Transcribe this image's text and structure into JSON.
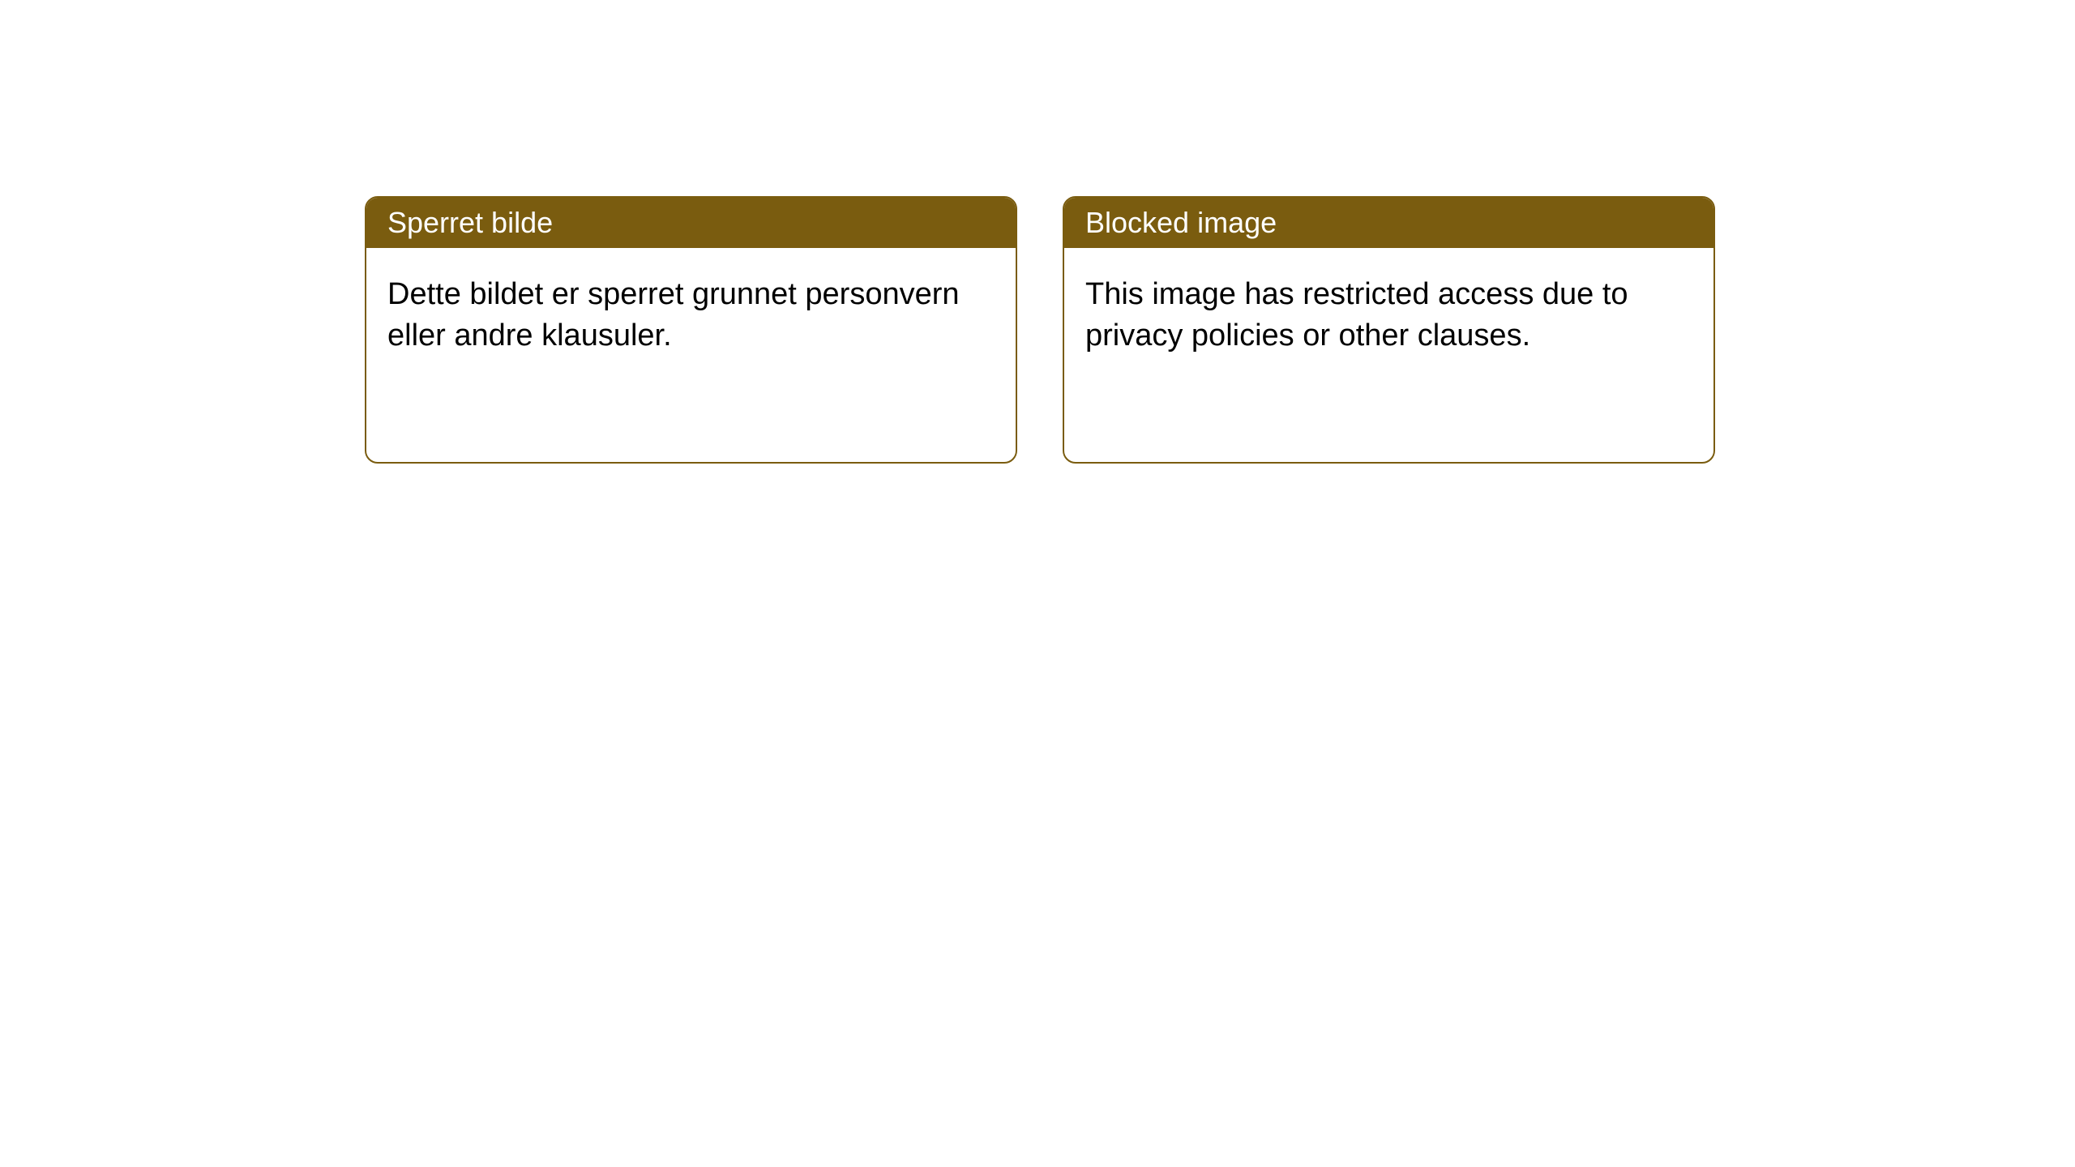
{
  "notices": [
    {
      "header": "Sperret bilde",
      "body": "Dette bildet er sperret grunnet personvern eller andre klausuler."
    },
    {
      "header": "Blocked image",
      "body": "This image has restricted access due to privacy policies or other clauses."
    }
  ],
  "style": {
    "header_bg": "#7a5c0f",
    "header_color": "#ffffff",
    "border_color": "#7a5c0f",
    "body_color": "#000000",
    "background_color": "#ffffff",
    "border_radius": 16,
    "header_fontsize": 36,
    "body_fontsize": 38
  }
}
